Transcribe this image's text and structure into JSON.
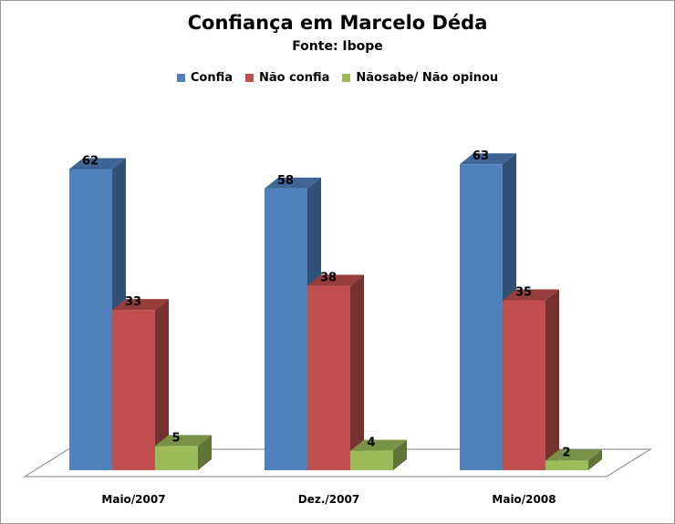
{
  "chart_data": {
    "type": "bar",
    "title": "Confiança em Marcelo Déda",
    "subtitle": "Fonte: Ibope",
    "categories": [
      "Maio/2007",
      "Dez./2007",
      "Maio/2008"
    ],
    "series": [
      {
        "name": "Confia",
        "values": [
          62,
          58,
          63
        ],
        "color": "#4F81BD"
      },
      {
        "name": "Não confia",
        "values": [
          33,
          38,
          35
        ],
        "color": "#C0504D"
      },
      {
        "name": "Nãosabe/ Não opinou",
        "values": [
          5,
          4,
          2
        ],
        "color": "#9BBB59"
      }
    ],
    "ylim": [
      0,
      70
    ],
    "grid": false,
    "legend_position": "top"
  }
}
